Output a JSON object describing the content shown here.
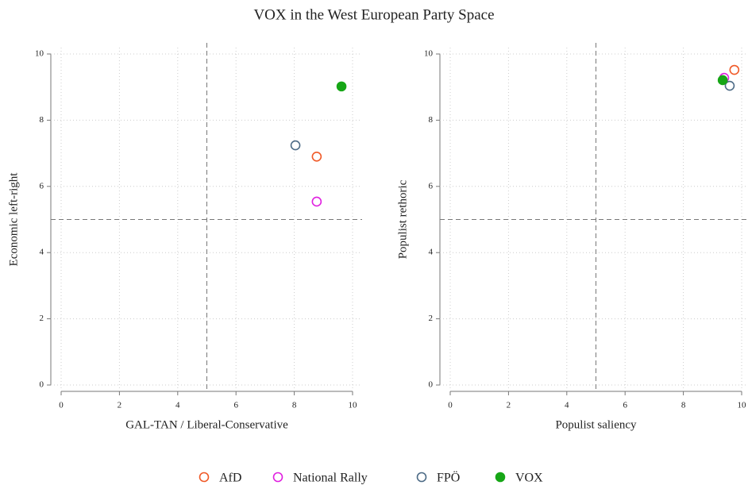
{
  "title": "VOX in the West European Party Space",
  "chart_data": [
    {
      "type": "scatter",
      "xlabel": "GAL-TAN / Liberal-Conservative",
      "ylabel": "Economic left-right",
      "xlim": [
        0,
        10
      ],
      "ylim": [
        0,
        10
      ],
      "xticks": [
        0,
        2,
        4,
        6,
        8,
        10
      ],
      "yticks": [
        0,
        2,
        4,
        6,
        8,
        10
      ],
      "grid": true,
      "vlines": [
        5
      ],
      "hlines": [
        5
      ],
      "legend": "bottom",
      "series": [
        {
          "name": "AfD",
          "color": "#f05a28",
          "filled": false,
          "x": [
            8.77
          ],
          "values": [
            6.9
          ]
        },
        {
          "name": "National Rally",
          "color": "#e020e0",
          "filled": false,
          "x": [
            8.77
          ],
          "values": [
            5.54
          ]
        },
        {
          "name": "FPÖ",
          "color": "#4d6b86",
          "filled": false,
          "x": [
            8.04
          ],
          "values": [
            7.24
          ]
        },
        {
          "name": "VOX",
          "color": "#16a616",
          "filled": true,
          "x": [
            9.62
          ],
          "values": [
            9.02
          ]
        }
      ]
    },
    {
      "type": "scatter",
      "xlabel": "Populist saliency",
      "ylabel": "Populist rethoric",
      "xlim": [
        0,
        10
      ],
      "ylim": [
        0,
        10
      ],
      "xticks": [
        0,
        2,
        4,
        6,
        8,
        10
      ],
      "yticks": [
        0,
        2,
        4,
        6,
        8,
        10
      ],
      "grid": true,
      "vlines": [
        5
      ],
      "hlines": [
        5
      ],
      "series": [
        {
          "name": "AfD",
          "color": "#f05a28",
          "filled": false,
          "x": [
            9.75
          ],
          "values": [
            9.52
          ]
        },
        {
          "name": "National Rally",
          "color": "#e020e0",
          "filled": false,
          "x": [
            9.4
          ],
          "values": [
            9.28
          ]
        },
        {
          "name": "FPÖ",
          "color": "#4d6b86",
          "filled": false,
          "x": [
            9.59
          ],
          "values": [
            9.04
          ]
        },
        {
          "name": "VOX",
          "color": "#16a616",
          "filled": true,
          "x": [
            9.35
          ],
          "values": [
            9.21
          ]
        }
      ]
    }
  ]
}
